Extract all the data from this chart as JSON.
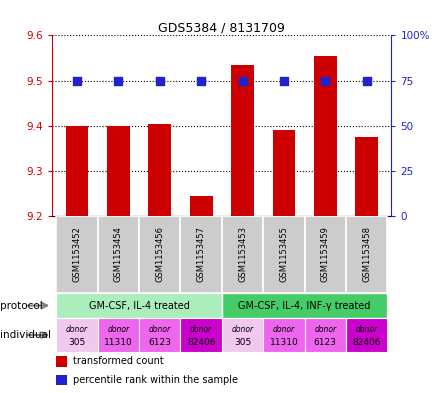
{
  "title": "GDS5384 / 8131709",
  "samples": [
    "GSM1153452",
    "GSM1153454",
    "GSM1153456",
    "GSM1153457",
    "GSM1153453",
    "GSM1153455",
    "GSM1153459",
    "GSM1153458"
  ],
  "transformed_counts": [
    9.4,
    9.4,
    9.405,
    9.245,
    9.535,
    9.39,
    9.555,
    9.375
  ],
  "percentile_values": [
    75,
    75,
    75,
    75,
    75,
    75,
    75,
    75
  ],
  "ylim": [
    9.2,
    9.6
  ],
  "y_left_ticks": [
    9.2,
    9.3,
    9.4,
    9.5,
    9.6
  ],
  "y_right_ticks": [
    0,
    25,
    50,
    75,
    100
  ],
  "y_right_tick_labels": [
    "0",
    "25",
    "50",
    "75",
    "100%"
  ],
  "bar_color": "#cc0000",
  "dot_color": "#2222cc",
  "bar_bottom": 9.2,
  "protocol_groups": [
    {
      "label": "GM-CSF, IL-4 treated",
      "start": 0,
      "end": 4,
      "color": "#aaeebb"
    },
    {
      "label": "GM-CSF, IL-4, INF-γ treated",
      "start": 4,
      "end": 8,
      "color": "#44cc66"
    }
  ],
  "individuals": [
    {
      "label": "donor",
      "number": "305",
      "idx": 0,
      "color": "#f0c8f0"
    },
    {
      "label": "donor",
      "number": "11310",
      "idx": 1,
      "color": "#ee66ee"
    },
    {
      "label": "donor",
      "number": "6123",
      "idx": 2,
      "color": "#ee66ee"
    },
    {
      "label": "donor",
      "number": "82406",
      "idx": 3,
      "color": "#cc00cc"
    },
    {
      "label": "donor",
      "number": "305",
      "idx": 4,
      "color": "#f0c8f0"
    },
    {
      "label": "donor",
      "number": "11310",
      "idx": 5,
      "color": "#ee66ee"
    },
    {
      "label": "donor",
      "number": "6123",
      "idx": 6,
      "color": "#ee66ee"
    },
    {
      "label": "donor",
      "number": "82406",
      "idx": 7,
      "color": "#cc00cc"
    }
  ],
  "left_axis_color": "#cc0000",
  "right_axis_color": "#2222cc",
  "bar_width": 0.55,
  "dot_size": 28,
  "legend_items": [
    {
      "color": "#cc0000",
      "label": "transformed count"
    },
    {
      "color": "#2222cc",
      "label": "percentile rank within the sample"
    }
  ]
}
